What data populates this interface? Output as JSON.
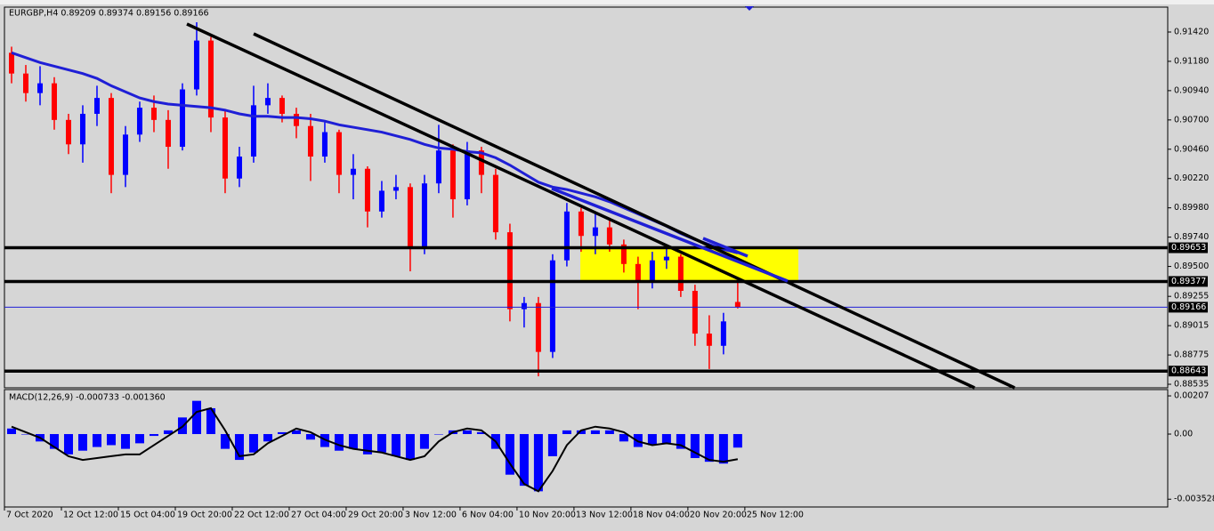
{
  "chart_data": [
    {
      "type": "candlestick",
      "info": "EURGBP,H4  0.89209 0.89374 0.89156 0.89166",
      "x": [
        0,
        1,
        2,
        3,
        4,
        5,
        6,
        7,
        8,
        9,
        10,
        11,
        12,
        13,
        14,
        15,
        16,
        17,
        18,
        19,
        20,
        21,
        22,
        23,
        24,
        25,
        26,
        27,
        28,
        29,
        30,
        31,
        32,
        33,
        34,
        35,
        36,
        37,
        38,
        39,
        40,
        41,
        42,
        43,
        44,
        45,
        46,
        47,
        48,
        49,
        50,
        51
      ],
      "open": [
        0.9125,
        0.9108,
        0.9092,
        0.91,
        0.907,
        0.905,
        0.9075,
        0.9088,
        0.9025,
        0.9058,
        0.908,
        0.907,
        0.9048,
        0.9095,
        0.9135,
        0.9072,
        0.9022,
        0.904,
        0.9082,
        0.9088,
        0.9075,
        0.9065,
        0.904,
        0.906,
        0.9025,
        0.903,
        0.8995,
        0.9012,
        0.9015,
        0.8965,
        0.9018,
        0.9045,
        0.9005,
        0.9045,
        0.9025,
        0.8978,
        0.8915,
        0.892,
        0.888,
        0.8955,
        0.8995,
        0.8975,
        0.8982,
        0.8968,
        0.8952,
        0.8938,
        0.8955,
        0.8958,
        0.893,
        0.8895,
        0.8885,
        0.89209
      ],
      "high": [
        0.913,
        0.9115,
        0.9114,
        0.9105,
        0.9075,
        0.9082,
        0.9098,
        0.9092,
        0.9065,
        0.9085,
        0.909,
        0.9078,
        0.91,
        0.915,
        0.9138,
        0.9078,
        0.9048,
        0.9098,
        0.91,
        0.909,
        0.908,
        0.9075,
        0.9068,
        0.9062,
        0.9042,
        0.9032,
        0.902,
        0.9025,
        0.9018,
        0.9025,
        0.9066,
        0.905,
        0.9052,
        0.9048,
        0.903,
        0.8985,
        0.8925,
        0.8925,
        0.896,
        0.9002,
        0.8998,
        0.8995,
        0.899,
        0.8972,
        0.8958,
        0.8962,
        0.8965,
        0.896,
        0.8935,
        0.891,
        0.8912,
        0.89374
      ],
      "low": [
        0.91,
        0.9085,
        0.9082,
        0.9062,
        0.9042,
        0.9035,
        0.9065,
        0.901,
        0.9015,
        0.9052,
        0.906,
        0.903,
        0.9045,
        0.909,
        0.906,
        0.901,
        0.9015,
        0.9035,
        0.9075,
        0.9068,
        0.9055,
        0.902,
        0.9035,
        0.901,
        0.9005,
        0.8982,
        0.899,
        0.9005,
        0.8946,
        0.896,
        0.901,
        0.899,
        0.9,
        0.901,
        0.8972,
        0.8905,
        0.89,
        0.886,
        0.8875,
        0.895,
        0.8962,
        0.896,
        0.8962,
        0.8945,
        0.8915,
        0.8932,
        0.8948,
        0.8925,
        0.8885,
        0.8866,
        0.8878,
        0.89156
      ],
      "close": [
        0.9108,
        0.9092,
        0.91,
        0.907,
        0.905,
        0.9075,
        0.9088,
        0.9025,
        0.9058,
        0.908,
        0.907,
        0.9048,
        0.9095,
        0.9135,
        0.9072,
        0.9022,
        0.904,
        0.9082,
        0.9088,
        0.9075,
        0.9065,
        0.904,
        0.906,
        0.9025,
        0.903,
        0.8995,
        0.9012,
        0.9015,
        0.8965,
        0.9018,
        0.9045,
        0.9005,
        0.9045,
        0.9025,
        0.8978,
        0.8915,
        0.892,
        0.888,
        0.8955,
        0.8995,
        0.8975,
        0.8982,
        0.8968,
        0.8952,
        0.8938,
        0.8955,
        0.8958,
        0.893,
        0.8895,
        0.8885,
        0.8905,
        0.89166
      ],
      "up_color": "#0000ff",
      "down_color": "#ff0000",
      "ma": {
        "color": "#1f1fd6",
        "values": [
          0.9125,
          0.9121,
          0.9117,
          0.9114,
          0.9111,
          0.9108,
          0.9104,
          0.9098,
          0.9093,
          0.9088,
          0.9085,
          0.9083,
          0.9082,
          0.9081,
          0.908,
          0.9078,
          0.9075,
          0.9073,
          0.9073,
          0.9072,
          0.9072,
          0.9071,
          0.9069,
          0.9066,
          0.9064,
          0.9062,
          0.906,
          0.9057,
          0.9054,
          0.905,
          0.9047,
          0.9046,
          0.9044,
          0.9043,
          0.9039,
          0.9033,
          0.9026,
          0.9019,
          0.9015,
          0.9013,
          0.901,
          0.9007,
          0.9003,
          0.8998,
          0.8993,
          0.8988,
          0.8983,
          0.8977,
          0.8972,
          0.8968,
          0.8964,
          0.8961
        ]
      },
      "levels": [
        0.89653,
        0.89377,
        0.88643
      ],
      "bid": 0.89166,
      "xlim": [
        -0.5,
        81.2
      ],
      "ylim": [
        0.88506,
        0.91624
      ],
      "yticks": [
        {
          "value": 0.9142,
          "label": "0.91420"
        },
        {
          "value": 0.9118,
          "label": "0.91180"
        },
        {
          "value": 0.9094,
          "label": "0.90940"
        },
        {
          "value": 0.907,
          "label": "0.90700"
        },
        {
          "value": 0.9046,
          "label": "0.90460"
        },
        {
          "value": 0.9022,
          "label": "0.90220"
        },
        {
          "value": 0.8998,
          "label": "0.89980"
        },
        {
          "value": 0.8974,
          "label": "0.89740"
        },
        {
          "value": 0.895,
          "label": "0.89500"
        },
        0.89255,
        0.89015,
        0.88775,
        0.88535
      ],
      "xticks": [
        {
          "value": -0.5,
          "label": "7 Oct 2020"
        },
        {
          "value": 3.5,
          "label": "12 Oct 12:00"
        },
        {
          "value": 7.5,
          "label": "15 Oct 04:00"
        },
        {
          "value": 11.5,
          "label": "19 Oct 20:00"
        },
        {
          "value": 15.5,
          "label": "22 Oct 12:00"
        },
        {
          "value": 19.5,
          "label": "27 Oct 04:00"
        },
        {
          "value": 23.5,
          "label": "29 Oct 20:00"
        },
        {
          "value": 27.5,
          "label": "3 Nov 12:00"
        },
        {
          "value": 31.5,
          "label": "6 Nov 04:00"
        },
        {
          "value": 35.5,
          "label": "10 Nov 20:00"
        },
        {
          "value": 39.5,
          "label": "13 Nov 12:00"
        },
        {
          "value": 43.5,
          "label": "18 Nov 04:00"
        },
        {
          "value": 47.5,
          "label": "20 Nov 20:00"
        },
        {
          "value": 51.5,
          "label": "25 Nov 12:00"
        }
      ]
    },
    {
      "type": "macd",
      "info": "MACD(12,26,9) -0.000733 -0.001360",
      "x": [
        0,
        1,
        2,
        3,
        4,
        5,
        6,
        7,
        8,
        9,
        10,
        11,
        12,
        13,
        14,
        15,
        16,
        17,
        18,
        19,
        20,
        21,
        22,
        23,
        24,
        25,
        26,
        27,
        28,
        29,
        30,
        31,
        32,
        33,
        34,
        35,
        36,
        37,
        38,
        39,
        40,
        41,
        42,
        43,
        44,
        45,
        46,
        47,
        48,
        49,
        50,
        51
      ],
      "histogram": {
        "color": "#0000ff",
        "values": [
          0.0003,
          0.0,
          -0.0004,
          -0.0008,
          -0.0011,
          -0.0009,
          -0.0007,
          -0.0006,
          -0.0008,
          -0.0005,
          -0.0001,
          0.0002,
          0.0009,
          0.0018,
          0.0014,
          -0.0008,
          -0.0014,
          -0.001,
          -0.0004,
          0.0001,
          0.0002,
          -0.0003,
          -0.0007,
          -0.0009,
          -0.0008,
          -0.0011,
          -0.001,
          -0.0012,
          -0.0014,
          -0.0008,
          0.0,
          0.0002,
          0.0002,
          0.0001,
          -0.0008,
          -0.0022,
          -0.0028,
          -0.0031,
          -0.0012,
          0.0002,
          0.0002,
          0.0002,
          0.0002,
          -0.0004,
          -0.0007,
          -0.0006,
          -0.0005,
          -0.0008,
          -0.0013,
          -0.0015,
          -0.0016,
          -0.000733
        ]
      },
      "signal": {
        "color": "#000000",
        "values": [
          0.0004,
          0.0001,
          -0.0002,
          -0.0007,
          -0.0012,
          -0.0014,
          -0.0013,
          -0.0012,
          -0.0011,
          -0.0011,
          -0.0006,
          -0.0001,
          0.0004,
          0.0012,
          0.0014,
          0.0002,
          -0.0012,
          -0.0011,
          -0.0005,
          -0.0001,
          0.0003,
          0.0001,
          -0.0003,
          -0.0006,
          -0.0008,
          -0.0009,
          -0.001,
          -0.0012,
          -0.0014,
          -0.0012,
          -0.0004,
          0.0001,
          0.0003,
          0.0002,
          -0.0004,
          -0.0016,
          -0.0027,
          -0.0031,
          -0.002,
          -0.0006,
          0.0002,
          0.0004,
          0.0003,
          0.0001,
          -0.0004,
          -0.0006,
          -0.0005,
          -0.0006,
          -0.001,
          -0.0014,
          -0.0015,
          -0.00136
        ]
      },
      "xlim": [
        -0.5,
        81.2
      ],
      "ylim": [
        -0.00395,
        0.00241
      ],
      "yticks": [
        {
          "value": 0.00207,
          "label": "0.00207"
        },
        {
          "value": 0,
          "label": "0.00"
        },
        {
          "value": -0.003528,
          "label": "-0.003528"
        }
      ]
    }
  ]
}
